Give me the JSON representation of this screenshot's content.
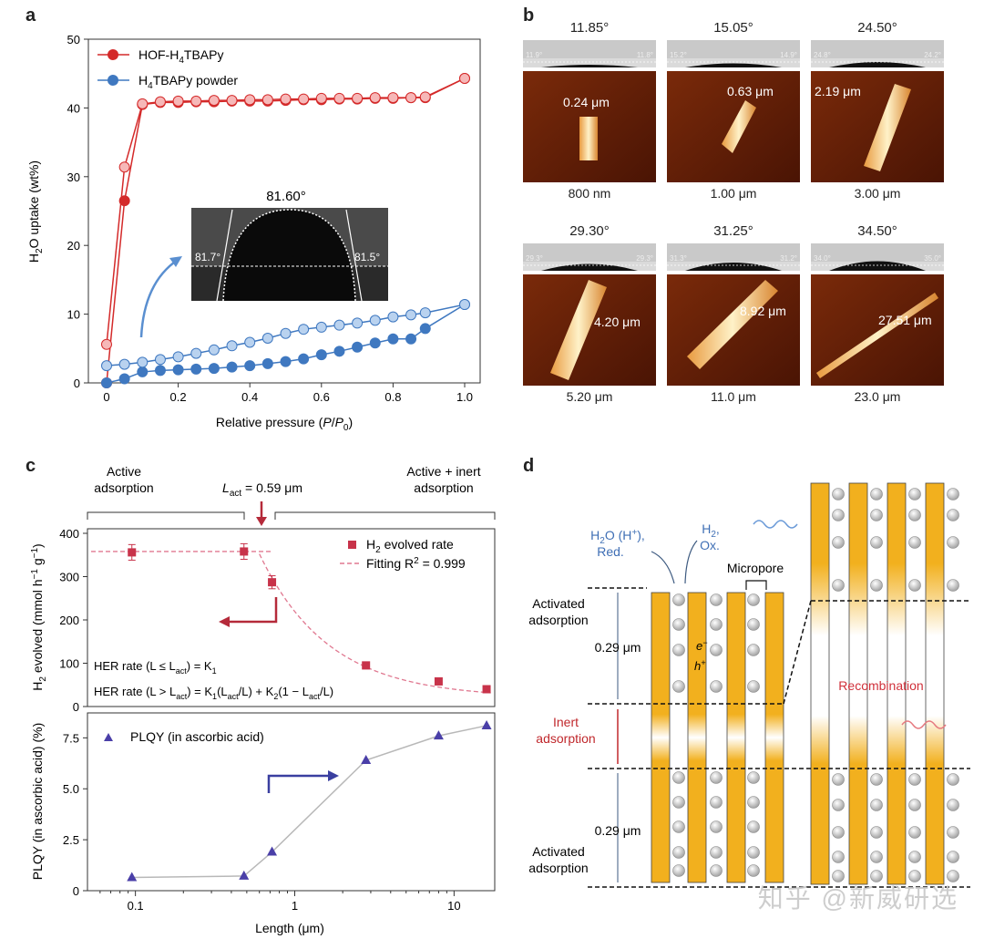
{
  "panels": {
    "a": "a",
    "b": "b",
    "c": "c",
    "d": "d"
  },
  "chart_data": [
    {
      "id": "panel-a",
      "type": "line",
      "xlabel": "Relative pressure (P/P0)",
      "ylabel": "H2O uptake (wt%)",
      "xlim": [
        0,
        1.0
      ],
      "ylim": [
        0,
        50
      ],
      "xticks": [
        "0",
        "0.2",
        "0.4",
        "0.6",
        "0.8",
        "1.0"
      ],
      "yticks": [
        "0",
        "10",
        "20",
        "30",
        "40",
        "50"
      ],
      "colors": {
        "hof": "#d42a2a",
        "powder": "#3f78c0"
      },
      "series": [
        {
          "name": "HOF-H4TBAPy",
          "branch": "adsorption",
          "x": [
            0,
            0.05,
            0.1,
            0.15,
            0.2,
            0.25,
            0.3,
            0.35,
            0.4,
            0.45,
            0.5,
            0.55,
            0.6,
            0.65,
            0.7,
            0.75,
            0.8,
            0.85,
            0.89,
            1.0
          ],
          "y": [
            0,
            26.5,
            40.5,
            40.8,
            40.8,
            40.9,
            40.9,
            41.0,
            41.0,
            41.0,
            41.1,
            41.2,
            41.2,
            41.3,
            41.3,
            41.4,
            41.4,
            41.5,
            41.5,
            44.3
          ]
        },
        {
          "name": "HOF-H4TBAPy",
          "branch": "desorption",
          "x": [
            0,
            0.05,
            0.1,
            0.15,
            0.2,
            0.25,
            0.3,
            0.35,
            0.4,
            0.45,
            0.5,
            0.55,
            0.6,
            0.65,
            0.7,
            0.75,
            0.8,
            0.85,
            0.89,
            1.0
          ],
          "y": [
            5.6,
            31.4,
            40.6,
            40.9,
            41.0,
            41.0,
            41.1,
            41.1,
            41.2,
            41.2,
            41.3,
            41.3,
            41.4,
            41.4,
            41.4,
            41.5,
            41.5,
            41.5,
            41.6,
            44.3
          ]
        },
        {
          "name": "H4TBAPy powder",
          "branch": "adsorption",
          "x": [
            0,
            0.05,
            0.1,
            0.15,
            0.2,
            0.25,
            0.3,
            0.35,
            0.4,
            0.45,
            0.5,
            0.55,
            0.6,
            0.65,
            0.7,
            0.75,
            0.8,
            0.85,
            0.89,
            1.0
          ],
          "y": [
            0,
            0.6,
            1.6,
            1.8,
            1.9,
            2.0,
            2.1,
            2.3,
            2.5,
            2.8,
            3.1,
            3.5,
            4.1,
            4.6,
            5.2,
            5.8,
            6.4,
            6.4,
            7.9,
            11.4
          ]
        },
        {
          "name": "H4TBAPy powder",
          "branch": "desorption",
          "x": [
            0,
            0.05,
            0.1,
            0.15,
            0.2,
            0.25,
            0.3,
            0.35,
            0.4,
            0.45,
            0.5,
            0.55,
            0.6,
            0.65,
            0.7,
            0.75,
            0.8,
            0.85,
            0.89,
            1.0
          ],
          "y": [
            2.5,
            2.7,
            3.0,
            3.4,
            3.8,
            4.3,
            4.8,
            5.4,
            5.9,
            6.5,
            7.2,
            7.8,
            8.1,
            8.4,
            8.7,
            9.1,
            9.6,
            9.9,
            10.2,
            11.4
          ]
        }
      ],
      "legend": [
        "HOF-H4TBAPy",
        "H4TBAPy powder"
      ],
      "inset": {
        "top_angle": "81.60°",
        "left_angle": "81.7°",
        "right_angle": "81.5°"
      }
    },
    {
      "id": "panel-c-top",
      "type": "scatter",
      "ylabel": "H2 evolved (mmol h−1 g−1)",
      "ylim": [
        0,
        400
      ],
      "yticks": [
        "0",
        "100",
        "200",
        "300",
        "400"
      ],
      "xscale": "log",
      "xlim": [
        0.05,
        18
      ],
      "points": {
        "x": [
          0.095,
          0.48,
          0.72,
          2.8,
          8.0,
          16.0
        ],
        "y": [
          356,
          358,
          287,
          95,
          58,
          40
        ],
        "err": [
          18,
          18,
          15,
          8,
          4,
          3
        ]
      },
      "fit_curve": {
        "plateau": 358,
        "Lact": 0.59
      },
      "legend": [
        "H2 evolved rate",
        "Fitting R2 = 0.999"
      ],
      "colors": {
        "points": "#c8334a",
        "fit": "#e07890",
        "arrow": "#b52a3a"
      }
    },
    {
      "id": "panel-c-bottom",
      "type": "line",
      "xlabel": "Length (μm)",
      "ylabel": "PLQY (in ascorbic acid) (%)",
      "ylim": [
        0,
        8.5
      ],
      "yticks": [
        "0",
        "2.5",
        "5.0",
        "7.5"
      ],
      "xscale": "log",
      "xticks": [
        "0.1",
        "1",
        "10"
      ],
      "xlim": [
        0.05,
        18
      ],
      "series": [
        {
          "name": "PLQY (in ascorbic acid)",
          "x": [
            0.095,
            0.48,
            0.72,
            2.8,
            8.0,
            16.0
          ],
          "y": [
            0.65,
            0.72,
            1.9,
            6.4,
            7.6,
            8.1
          ]
        }
      ],
      "colors": {
        "marker": "#4a3fa8",
        "line": "#b8b8b8",
        "arrow": "#3a3fa0"
      }
    }
  ],
  "panel_a": {
    "legend_hof": "HOF-H",
    "legend_hof_sub": "4",
    "legend_hof_tail": "TBAPy",
    "legend_powder": "H",
    "legend_powder_sub": "4",
    "legend_powder_tail": "TBAPy powder",
    "ylabel_main": "H",
    "ylabel_sub": "2",
    "ylabel_tail": "O uptake (wt%)",
    "xlabel": "Relative pressure (",
    "xlabel_p": "P",
    "xlabel_slash": "/",
    "xlabel_p0": "P",
    "xlabel_sub": "0",
    "xlabel_end": ")",
    "inset_top": "81.60°",
    "inset_left": "81.7°",
    "inset_right": "81.5°"
  },
  "panel_b": {
    "tiles": [
      {
        "angle": "11.85°",
        "left_small": "11.9°",
        "right_small": "11.8°",
        "length": "0.24 μm",
        "scale": "800 nm"
      },
      {
        "angle": "15.05°",
        "left_small": "15.2°",
        "right_small": "14.9°",
        "length": "0.63 μm",
        "scale": "1.00 μm"
      },
      {
        "angle": "24.50°",
        "left_small": "24.8°",
        "right_small": "24.2°",
        "length": "2.19 μm",
        "scale": "3.00 μm"
      },
      {
        "angle": "29.30°",
        "left_small": "29.3°",
        "right_small": "29.3°",
        "length": "4.20 μm",
        "scale": "5.20 μm"
      },
      {
        "angle": "31.25°",
        "left_small": "31.3°",
        "right_small": "31.2°",
        "length": "8.92 μm",
        "scale": "11.0 μm"
      },
      {
        "angle": "34.50°",
        "left_small": "34.0°",
        "right_small": "35.0°",
        "length": "27.51 μm",
        "scale": "23.0 μm"
      }
    ]
  },
  "panel_c": {
    "active_ads_1": "Active",
    "active_ads_2": "adsorption",
    "lact_label": "L",
    "lact_sub": "act",
    "lact_value": " = 0.59 μm",
    "inert_1": "Active + inert",
    "inert_2": "adsorption",
    "legend_h2": "H",
    "legend_h2_sub": "2",
    "legend_h2_tail": " evolved rate",
    "legend_fit": "Fitting R",
    "legend_fit_sup": "2",
    "legend_fit_tail": " = 0.999",
    "eq1": "HER rate (L ≤ L",
    "eq1_sub": "act",
    "eq1_tail": ") = K",
    "eq1_k": "1",
    "eq2": "HER rate (L > L",
    "eq2_sub": "act",
    "eq2_mid": ") = K",
    "eq2_k1": "1",
    "eq2_a": "(L",
    "eq2_a_sub": "act",
    "eq2_b": "/L) + K",
    "eq2_k2": "2",
    "eq2_c": "(1 − L",
    "eq2_c_sub": "act",
    "eq2_d": "/L)",
    "ylabel_top": "H",
    "ylabel_top_sub": "2",
    "ylabel_top_tail": " evolved (mmol h",
    "ylabel_top_sup1": "−1",
    "ylabel_top_g": " g",
    "ylabel_top_sup2": "−1",
    "ylabel_top_end": ")",
    "ylabel_bottom": "PLQY (in ascorbic acid) (%)",
    "legend_plqy": "PLQY (in ascorbic acid)",
    "xlabel": "Length (μm)"
  },
  "panel_d": {
    "h2o": "H",
    "h2o_sub": "2",
    "h2o_tail": "O (H",
    "h2o_sup": "+",
    "h2o_end": "),",
    "red": "Red.",
    "h2": "H",
    "h2_sub": "2",
    "h2_tail": ",",
    "ox": "Ox.",
    "micropore": "Micropore",
    "activated_1": "Activated",
    "activated_2": "adsorption",
    "depth_top": "0.29 μm",
    "inert_1": "Inert",
    "inert_2": "adsorption",
    "depth_bottom": "0.29 μm",
    "activated_b1": "Activated",
    "activated_b2": "adsorption",
    "recombination": "Recombination",
    "electron": "e",
    "electron_sup": "−",
    "hole": "h",
    "hole_sup": "+"
  },
  "watermark": "知乎 @新威研选"
}
